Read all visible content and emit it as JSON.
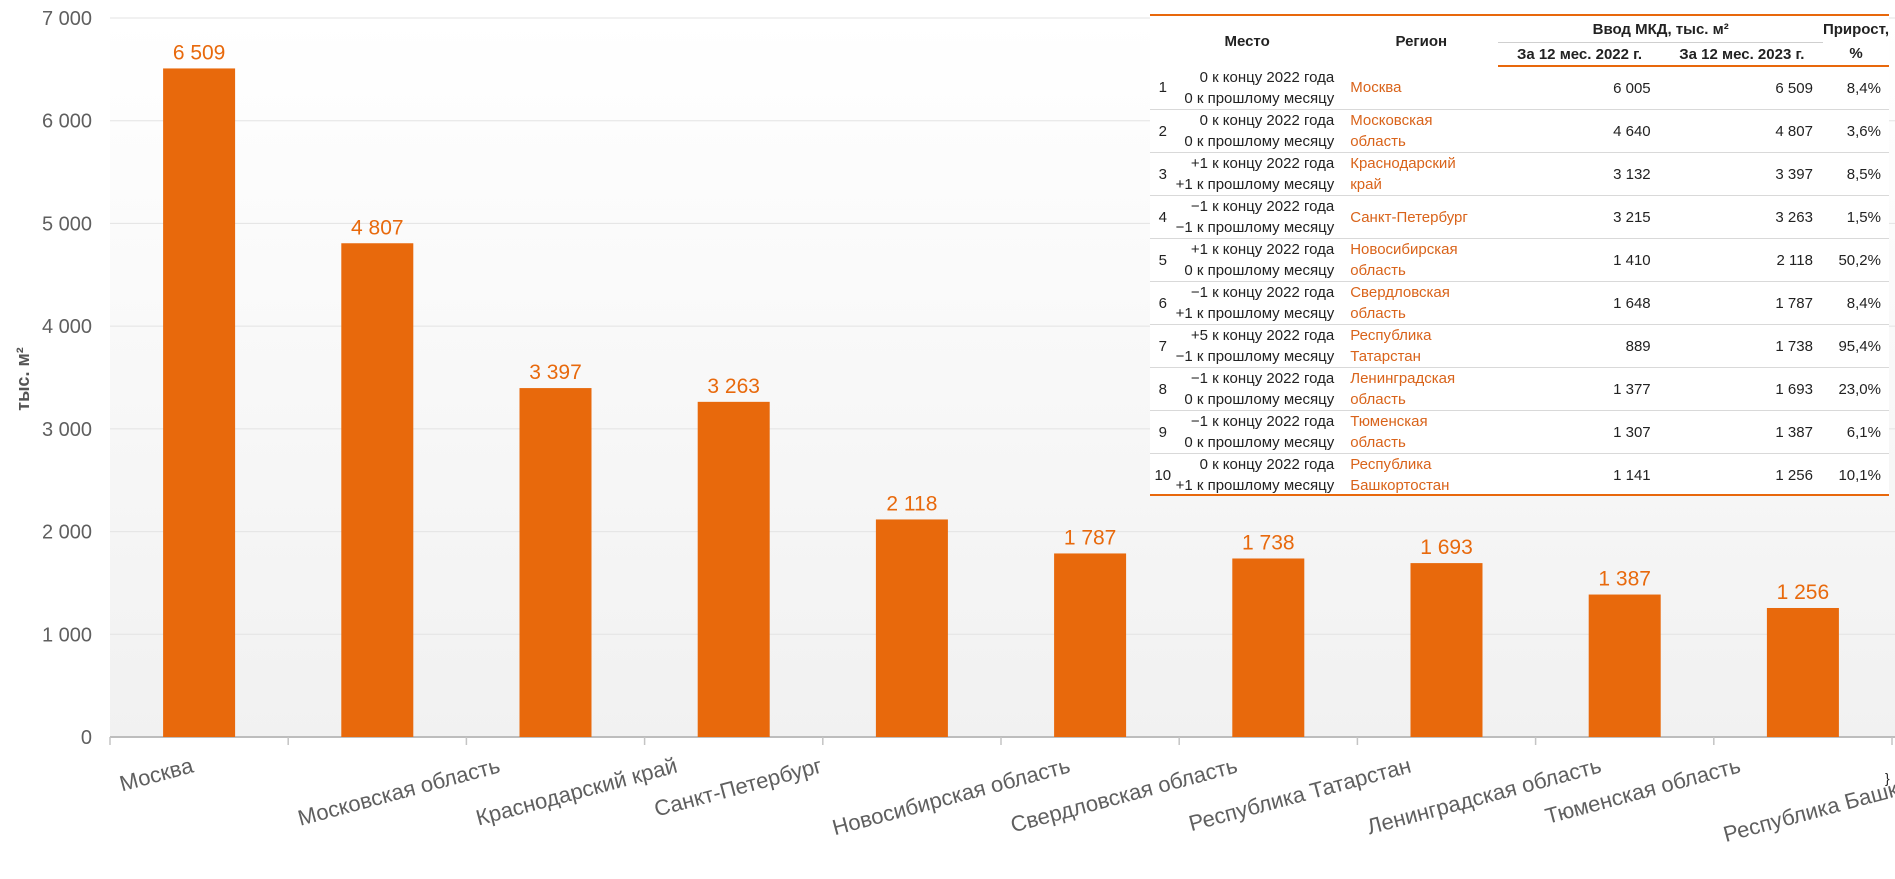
{
  "colors": {
    "accent": "#e8690c",
    "label": "#e8690c",
    "axis_text": "#5f5f5f"
  },
  "chart_data": {
    "type": "bar",
    "ylabel": "тыс. м²",
    "ylim": [
      0,
      7000
    ],
    "yticks": [
      0,
      1000,
      2000,
      3000,
      4000,
      5000,
      6000,
      7000
    ],
    "ytick_labels": [
      "0",
      "1 000",
      "2 000",
      "3 000",
      "4 000",
      "5 000",
      "6 000",
      "7 000"
    ],
    "categories": [
      "Москва",
      "Московская  область",
      "Краснодарский  край",
      "Санкт-Петербург",
      "Новосибирская  область",
      "Свердловская  область",
      "Республика  Татарстан",
      "Ленинградская  область",
      "Тюменская  область",
      "Республика  Башкортостан"
    ],
    "values": [
      6509,
      4807,
      3397,
      3263,
      2118,
      1787,
      1738,
      1693,
      1387,
      1256
    ],
    "value_labels": [
      "6 509",
      "4 807",
      "3 397",
      "3 263",
      "2 118",
      "1 787",
      "1 738",
      "1 693",
      "1 387",
      "1 256"
    ]
  },
  "table": {
    "headers": {
      "place": "Место",
      "region": "Регион",
      "group": "Ввод МКД, тыс. м²",
      "y2022": "За 12 мес. 2022 г.",
      "y2023": "За 12 мес. 2023 г.",
      "growth_1": "Прирост,",
      "growth_2": "%"
    },
    "rows": [
      {
        "rank": "1",
        "c1": "0 к концу 2022 года",
        "c2": "0 к прошлому месяцу",
        "r1": "Москва",
        "r2": "",
        "v2022": "6 005",
        "v2023": "6 509",
        "growth": "8,4%"
      },
      {
        "rank": "2",
        "c1": "0 к концу 2022 года",
        "c2": "0 к прошлому месяцу",
        "r1": "Московская",
        "r2": "область",
        "v2022": "4 640",
        "v2023": "4 807",
        "growth": "3,6%"
      },
      {
        "rank": "3",
        "c1": "+1 к концу 2022 года",
        "c2": "+1 к прошлому месяцу",
        "r1": "Краснодарский",
        "r2": "край",
        "v2022": "3 132",
        "v2023": "3 397",
        "growth": "8,5%"
      },
      {
        "rank": "4",
        "c1": "−1 к концу 2022 года",
        "c2": "−1 к прошлому месяцу",
        "r1": "Санкт-Петербург",
        "r2": "",
        "v2022": "3 215",
        "v2023": "3 263",
        "growth": "1,5%"
      },
      {
        "rank": "5",
        "c1": "+1 к концу 2022 года",
        "c2": "0 к прошлому месяцу",
        "r1": "Новосибирская",
        "r2": "область",
        "v2022": "1 410",
        "v2023": "2 118",
        "growth": "50,2%"
      },
      {
        "rank": "6",
        "c1": "−1 к концу 2022 года",
        "c2": "+1 к прошлому месяцу",
        "r1": "Свердловская",
        "r2": "область",
        "v2022": "1 648",
        "v2023": "1 787",
        "growth": "8,4%"
      },
      {
        "rank": "7",
        "c1": "+5 к концу 2022 года",
        "c2": "−1 к прошлому месяцу",
        "r1": "Республика",
        "r2": "Татарстан",
        "v2022": "889",
        "v2023": "1 738",
        "growth": "95,4%"
      },
      {
        "rank": "8",
        "c1": "−1 к концу 2022 года",
        "c2": "0 к прошлому месяцу",
        "r1": "Ленинградская",
        "r2": "область",
        "v2022": "1 377",
        "v2023": "1 693",
        "growth": "23,0%"
      },
      {
        "rank": "9",
        "c1": "−1 к концу 2022 года",
        "c2": "0 к прошлому месяцу",
        "r1": "Тюменская",
        "r2": "область",
        "v2022": "1 307",
        "v2023": "1 387",
        "growth": "6,1%"
      },
      {
        "rank": "10",
        "c1": "0 к концу 2022 года",
        "c2": "+1 к прошлому месяцу",
        "r1": "Республика",
        "r2": "Башкортостан",
        "v2022": "1 141",
        "v2023": "1 256",
        "growth": "10,1%"
      }
    ]
  }
}
